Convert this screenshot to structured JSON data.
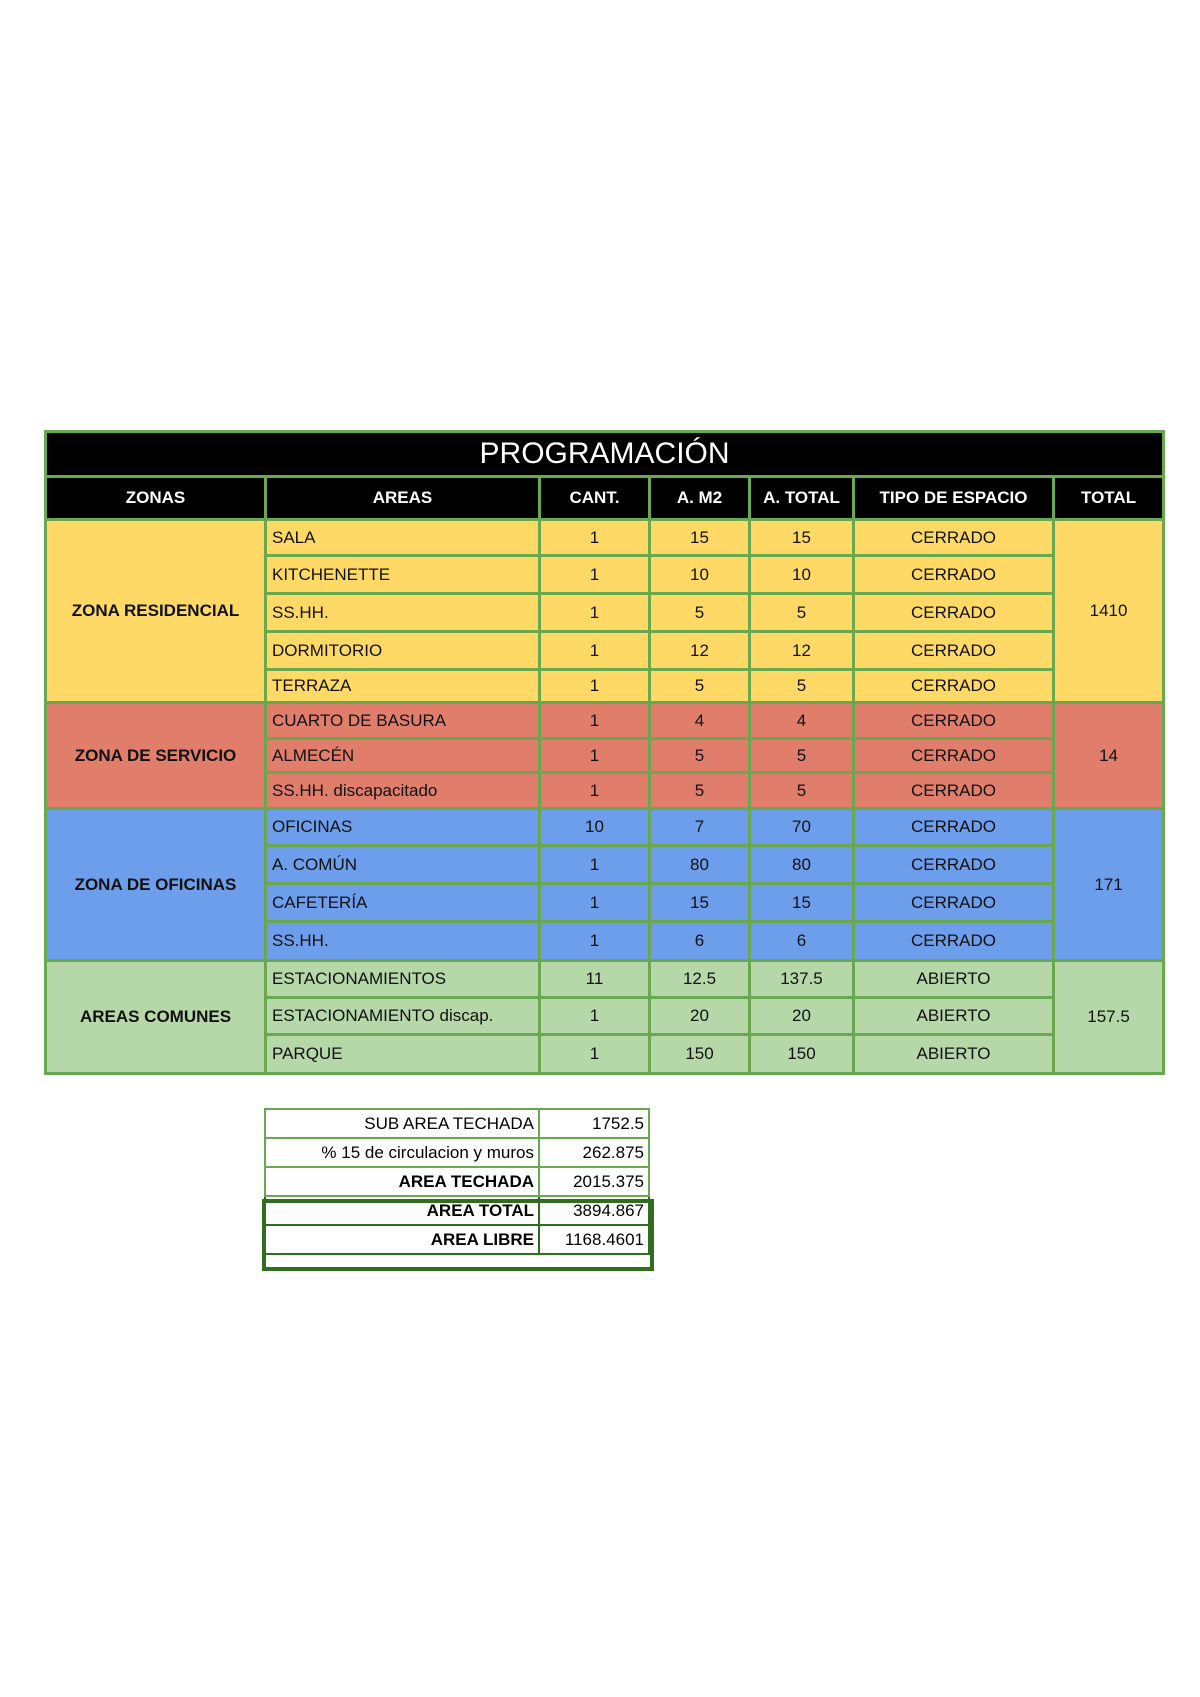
{
  "title": "PROGRAMACIÓN",
  "headers": [
    "ZONAS",
    "AREAS",
    "CANT.",
    "A. M2",
    "A. TOTAL",
    "TIPO DE ESPACIO",
    "TOTAL"
  ],
  "colors": {
    "residencial": "#ffd966",
    "servicio": "#e07e6b",
    "oficinas": "#6d9eeb",
    "comunes": "#b6d7a8",
    "border": "#6aa84f",
    "header": "#000000"
  },
  "zones": [
    {
      "name": "ZONA RESIDENCIAL",
      "total": "1410",
      "rows": [
        {
          "area": "SALA",
          "cant": "1",
          "m2": "15",
          "total": "15",
          "tipo": "CERRADO"
        },
        {
          "area": "KITCHENETTE",
          "cant": "1",
          "m2": "10",
          "total": "10",
          "tipo": "CERRADO"
        },
        {
          "area": "SS.HH.",
          "cant": "1",
          "m2": "5",
          "total": "5",
          "tipo": "CERRADO"
        },
        {
          "area": "DORMITORIO",
          "cant": "1",
          "m2": "12",
          "total": "12",
          "tipo": "CERRADO"
        },
        {
          "area": "TERRAZA",
          "cant": "1",
          "m2": "5",
          "total": "5",
          "tipo": "CERRADO"
        }
      ]
    },
    {
      "name": "ZONA DE SERVICIO",
      "total": "14",
      "rows": [
        {
          "area": "CUARTO DE BASURA",
          "cant": "1",
          "m2": "4",
          "total": "4",
          "tipo": "CERRADO"
        },
        {
          "area": "ALMECÉN",
          "cant": "1",
          "m2": "5",
          "total": "5",
          "tipo": "CERRADO"
        },
        {
          "area": "SS.HH. discapacitado",
          "cant": "1",
          "m2": "5",
          "total": "5",
          "tipo": "CERRADO"
        }
      ]
    },
    {
      "name": "ZONA DE OFICINAS",
      "total": "171",
      "rows": [
        {
          "area": "OFICINAS",
          "cant": "10",
          "m2": "7",
          "total": "70",
          "tipo": "CERRADO"
        },
        {
          "area": "A. COMÚN",
          "cant": "1",
          "m2": "80",
          "total": "80",
          "tipo": "CERRADO"
        },
        {
          "area": "CAFETERÍA",
          "cant": "1",
          "m2": "15",
          "total": "15",
          "tipo": "CERRADO"
        },
        {
          "area": "SS.HH.",
          "cant": "1",
          "m2": "6",
          "total": "6",
          "tipo": "CERRADO"
        }
      ]
    },
    {
      "name": "AREAS COMUNES",
      "total": "157.5",
      "rows": [
        {
          "area": "ESTACIONAMIENTOS",
          "cant": "11",
          "m2": "12.5",
          "total": "137.5",
          "tipo": "ABIERTO"
        },
        {
          "area": "ESTACIONAMIENTO discap.",
          "cant": "1",
          "m2": "20",
          "total": "20",
          "tipo": "ABIERTO"
        },
        {
          "area": "PARQUE",
          "cant": "1",
          "m2": "150",
          "total": "150",
          "tipo": "ABIERTO"
        }
      ]
    }
  ],
  "summary": [
    {
      "label": "SUB AREA TECHADA",
      "value": "1752.5"
    },
    {
      "label": "% 15 de circulacion y muros",
      "value": "262.875"
    },
    {
      "label": "AREA TECHADA",
      "value": "2015.375"
    },
    {
      "label": "AREA TOTAL",
      "value": "3894.867"
    },
    {
      "label": "AREA LIBRE",
      "value": "1168.4601"
    }
  ]
}
